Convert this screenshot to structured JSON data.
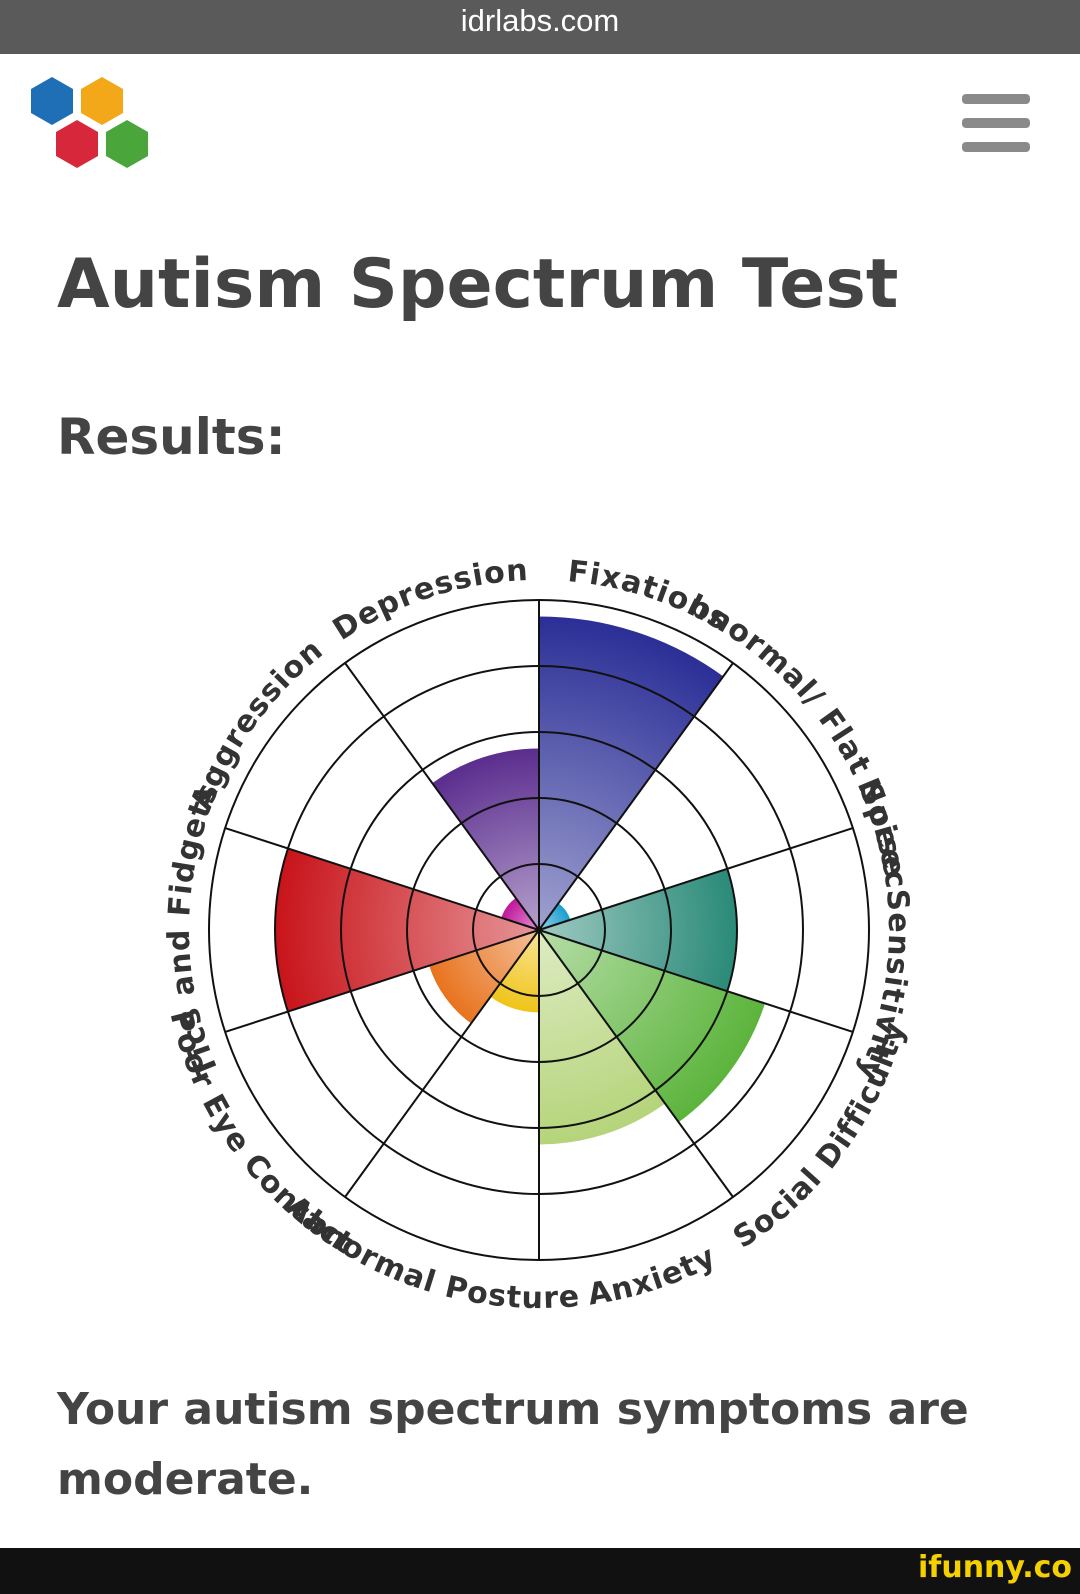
{
  "header": {
    "url": "idrlabs.com"
  },
  "page": {
    "title": "Autism Spectrum Test",
    "subtitle": "Results:",
    "result": "Your autism spectrum symptoms are moderate."
  },
  "footer": {
    "watermark": "ifunny.co"
  },
  "chart_data": {
    "type": "polar-area",
    "categories": [
      "Fixations",
      "Abnormal/ Flat Speech",
      "Noise Sensitivity",
      "Social Difficulty",
      "Anxiety",
      "Abnormal Posture",
      "Poor Eye Contact",
      "Tics and Fidgets",
      "Aggression",
      "Depression"
    ],
    "values": [
      95,
      10,
      60,
      72,
      65,
      25,
      35,
      80,
      12,
      55
    ],
    "colors": [
      "#2b2f96",
      "#1a9ecf",
      "#2a8a78",
      "#5cb43c",
      "#b5d47a",
      "#f0c419",
      "#e8731e",
      "#c8141a",
      "#c0169a",
      "#5b2d8e"
    ],
    "rlim": [
      0,
      100
    ],
    "rticks": [
      20,
      40,
      60,
      80,
      100
    ],
    "grid": true
  }
}
